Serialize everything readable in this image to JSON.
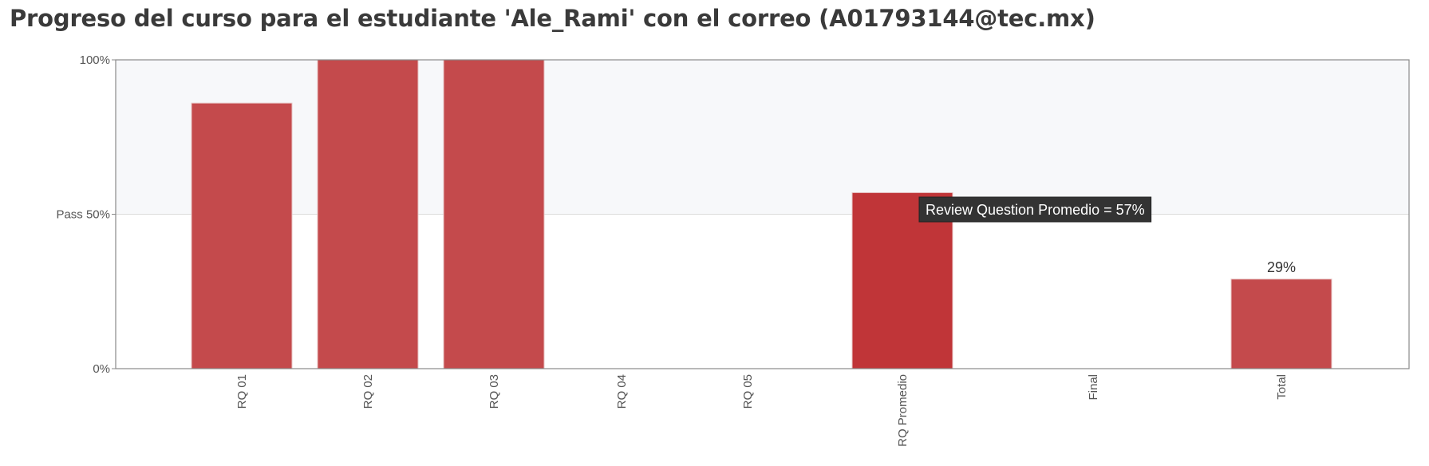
{
  "title": "Progreso del curso para el estudiante 'Ale_Rami' con el correo (A01793144@tec.mx)",
  "colors": {
    "bar": "#c44a4c",
    "bar_highlight": "#c03538",
    "pass_band": "#f7f8fa",
    "tooltip_bg": "#333333"
  },
  "chart_data": {
    "type": "bar",
    "categories": [
      "RQ 01",
      "RQ 02",
      "RQ 03",
      "RQ 04",
      "RQ 05",
      "RQ Promedio",
      "Final",
      "Total"
    ],
    "values": [
      86,
      100,
      100,
      0,
      0,
      57,
      0,
      29
    ],
    "y_ticks": [
      {
        "value": 0,
        "label": "0%"
      },
      {
        "value": 50,
        "label": "Pass 50%"
      },
      {
        "value": 100,
        "label": "100%"
      }
    ],
    "ylim": [
      0,
      100
    ],
    "pass_threshold": 50,
    "data_labels": [
      {
        "category": "Total",
        "text": "29%"
      }
    ],
    "tooltip": {
      "category": "RQ Promedio",
      "text": "Review Question Promedio = 57%"
    },
    "grid": true
  }
}
